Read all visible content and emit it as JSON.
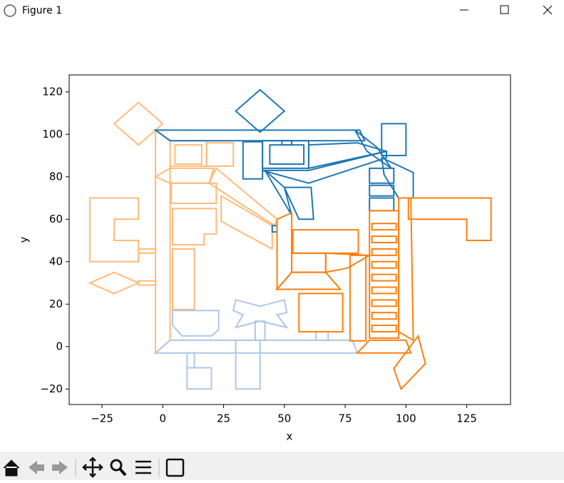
{
  "window": {
    "title": "Figure 1"
  },
  "chart_data": {
    "type": "polygon",
    "xlabel": "x",
    "ylabel": "y",
    "xlim": [
      -38.5,
      143
    ],
    "ylim": [
      -27.3,
      128
    ],
    "xticks": [
      {
        "value": -25,
        "label": "−25"
      },
      0,
      25,
      50,
      75,
      100,
      125
    ],
    "yticks": [
      {
        "value": -20,
        "label": "−20"
      },
      0,
      20,
      40,
      60,
      80,
      100,
      120
    ],
    "series": [
      {
        "color": "#ffbb78",
        "polygons": [
          {
            "x": [
              -20,
              -10,
              0,
              -10
            ],
            "y": [
              105,
              115,
              105,
              95
            ]
          },
          {
            "x": [
              -30,
              -10,
              -10,
              -20,
              -20,
              -10,
              -10,
              -30
            ],
            "y": [
              70,
              70,
              60,
              60,
              50,
              50,
              40,
              40
            ]
          },
          {
            "x": [
              -10,
              -3,
              -3,
              -10
            ],
            "y": [
              46,
              46,
              44,
              44
            ]
          },
          {
            "x": [
              -30,
              -20,
              -10,
              -20
            ],
            "y": [
              30,
              35,
              30,
              25
            ]
          },
          {
            "x": [
              -10,
              -3,
              -3,
              -10
            ],
            "y": [
              31,
              31,
              29,
              29
            ]
          },
          {
            "x": [
              -3,
              3,
              3,
              -3
            ],
            "y": [
              102,
              97,
              3,
              -3
            ]
          },
          {
            "x": [
              3,
              18,
              18,
              3
            ],
            "y": [
              97,
              97,
              85,
              85
            ]
          },
          {
            "x": [
              5,
              16,
              16,
              5
            ],
            "y": [
              95,
              95,
              86,
              86
            ]
          },
          {
            "x": [
              18,
              29,
              29,
              18
            ],
            "y": [
              96,
              96,
              85,
              85
            ]
          },
          {
            "x": [
              -3,
              3,
              21,
              19,
              3
            ],
            "y": [
              80,
              84,
              84,
              77,
              77
            ]
          },
          {
            "x": [
              3.5,
              22,
              22,
              3.5
            ],
            "y": [
              77,
              77,
              67.5,
              67.5
            ]
          },
          {
            "x": [
              19,
              22,
              47,
              46
            ],
            "y": [
              77,
              84,
              60,
              57
            ]
          },
          {
            "x": [
              4,
              22,
              22,
              17,
              17,
              4
            ],
            "y": [
              65,
              65,
              53,
              53,
              48,
              48
            ]
          },
          {
            "x": [
              24,
              45,
              45,
              24
            ],
            "y": [
              71,
              57,
              46,
              59
            ]
          },
          {
            "x": [
              4,
              13,
              13,
              4
            ],
            "y": [
              46,
              46,
              17.5,
              17.5
            ]
          }
        ]
      },
      {
        "color": "#aec7e8",
        "polygons": [
          {
            "x": [
              -3,
              3,
              78,
              80
            ],
            "y": [
              -3,
              3,
              3,
              -3
            ]
          },
          {
            "x": [
              4,
              23,
              23,
              20,
              8,
              4
            ],
            "y": [
              17,
              17,
              8,
              5,
              5,
              10
            ]
          },
          {
            "x": [
              30,
              40,
              50,
              51,
              47,
              51,
              40,
              30,
              33,
              29
            ],
            "y": [
              22,
              19,
              22,
              16,
              15,
              9,
              12,
              9,
              15,
              17
            ]
          },
          {
            "x": [
              38,
              42,
              42,
              38
            ],
            "y": [
              12,
              12,
              3,
              3
            ]
          },
          {
            "x": [
              30,
              40,
              40,
              30
            ],
            "y": [
              3,
              3,
              -20,
              -20
            ]
          },
          {
            "x": [
              10,
              13,
              13,
              10
            ],
            "y": [
              -3,
              -3,
              -10,
              -10
            ]
          },
          {
            "x": [
              10,
              20,
              20,
              10
            ],
            "y": [
              -10,
              -10,
              -20,
              -20
            ]
          },
          {
            "x": [
              63,
              68,
              68,
              63
            ],
            "y": [
              7,
              7,
              3,
              3
            ]
          }
        ]
      },
      {
        "color": "#1f77b4",
        "polygons": [
          {
            "x": [
              30,
              40,
              50,
              40
            ],
            "y": [
              111,
              121,
              111,
              101
            ]
          },
          {
            "x": [
              -3,
              81,
              83,
              3
            ],
            "y": [
              102,
              102,
              97,
              97
            ]
          },
          {
            "x": [
              33,
              41,
              41,
              33
            ],
            "y": [
              96.5,
              96.5,
              79,
              79
            ]
          },
          {
            "x": [
              41,
              60,
              60,
              41
            ],
            "y": [
              97,
              97,
              84,
              84
            ]
          },
          {
            "x": [
              44,
              58,
              58,
              44
            ],
            "y": [
              95,
              95,
              86,
              86
            ]
          },
          {
            "x": [
              49,
              53,
              53,
              49
            ],
            "y": [
              97,
              97,
              95,
              95
            ]
          },
          {
            "x": [
              60,
              80,
              92,
              60
            ],
            "y": [
              95,
              96,
              92,
              84
            ]
          },
          {
            "x": [
              41,
              60,
              92,
              92,
              60
            ],
            "y": [
              83,
              83,
              92,
              89,
              77
            ]
          },
          {
            "x": [
              42,
              53,
              50
            ],
            "y": [
              83,
              62,
              75
            ]
          },
          {
            "x": [
              50,
              61,
              62,
              56
            ],
            "y": [
              75,
              75,
              60,
              60
            ]
          },
          {
            "x": [
              90,
              100,
              100,
              90
            ],
            "y": [
              105,
              105,
              90,
              90
            ]
          },
          {
            "x": [
              79,
              88,
              94,
              84
            ],
            "y": [
              102,
              94,
              84,
              92
            ]
          },
          {
            "x": [
              90,
              103,
              103,
              97,
              91
            ],
            "y": [
              89,
              82,
              70,
              70,
              81
            ]
          },
          {
            "x": [
              85,
              95,
              95,
              85
            ],
            "y": [
              84,
              84,
              77,
              77
            ]
          },
          {
            "x": [
              85,
              95,
              95,
              85
            ],
            "y": [
              76,
              76,
              71,
              71
            ]
          },
          {
            "x": [
              85,
              95,
              95,
              85
            ],
            "y": [
              70,
              70,
              64,
              64
            ]
          },
          {
            "x": [
              45,
              47,
              47,
              45
            ],
            "y": [
              57,
              57,
              54,
              54
            ]
          }
        ]
      },
      {
        "color": "#ff7f0e",
        "polygons": [
          {
            "x": [
              47,
              53,
              53,
              47
            ],
            "y": [
              60,
              63,
              35,
              27
            ]
          },
          {
            "x": [
              47,
              53,
              67,
              73
            ],
            "y": [
              27,
              35,
              35,
              27
            ]
          },
          {
            "x": [
              53.5,
              80.4,
              80.4,
              53.5
            ],
            "y": [
              55,
              55,
              44,
              44
            ]
          },
          {
            "x": [
              53,
              67,
              67,
              53
            ],
            "y": [
              44,
              44,
              35,
              35
            ]
          },
          {
            "x": [
              67,
              85,
              76,
              67
            ],
            "y": [
              44,
              43,
              37,
              35
            ]
          },
          {
            "x": [
              77,
              83.5,
              83.5,
              77
            ],
            "y": [
              43,
              43,
              2.7,
              2.7
            ]
          },
          {
            "x": [
              56,
              74,
              74,
              56
            ],
            "y": [
              25,
              25,
              7,
              7
            ]
          },
          {
            "x": [
              85,
              97,
              97,
              85
            ],
            "y": [
              64,
              64,
              4,
              4
            ]
          },
          {
            "x": [
              86,
              96,
              96,
              86
            ],
            "y": [
              58,
              58,
              55,
              55
            ]
          },
          {
            "x": [
              86,
              96,
              96,
              86
            ],
            "y": [
              52,
              52,
              49,
              49
            ]
          },
          {
            "x": [
              86,
              96,
              96,
              86
            ],
            "y": [
              46,
              46,
              43,
              43
            ]
          },
          {
            "x": [
              86,
              96,
              96,
              86
            ],
            "y": [
              40,
              40,
              37,
              37
            ]
          },
          {
            "x": [
              86,
              96,
              96,
              86
            ],
            "y": [
              34,
              34,
              31,
              31
            ]
          },
          {
            "x": [
              86,
              96,
              96,
              86
            ],
            "y": [
              28,
              28,
              25,
              25
            ]
          },
          {
            "x": [
              86,
              96,
              96,
              86
            ],
            "y": [
              22,
              22,
              19,
              19
            ]
          },
          {
            "x": [
              86,
              96,
              96,
              86
            ],
            "y": [
              16,
              16,
              13,
              13
            ]
          },
          {
            "x": [
              86,
              96,
              96,
              86
            ],
            "y": [
              10,
              10,
              7,
              7
            ]
          },
          {
            "x": [
              97,
              102,
              103,
              97
            ],
            "y": [
              70,
              70,
              3,
              7
            ]
          },
          {
            "x": [
              101,
              135,
              135,
              125,
              125,
              101
            ],
            "y": [
              70,
              70,
              50,
              50,
              60,
              60
            ]
          },
          {
            "x": [
              80,
              85,
              100,
              102
            ],
            "y": [
              -3,
              3,
              3,
              -3
            ]
          },
          {
            "x": [
              95,
              105,
              108,
              98
            ],
            "y": [
              -10.4,
              5,
              -8,
              -20
            ]
          }
        ]
      }
    ]
  }
}
